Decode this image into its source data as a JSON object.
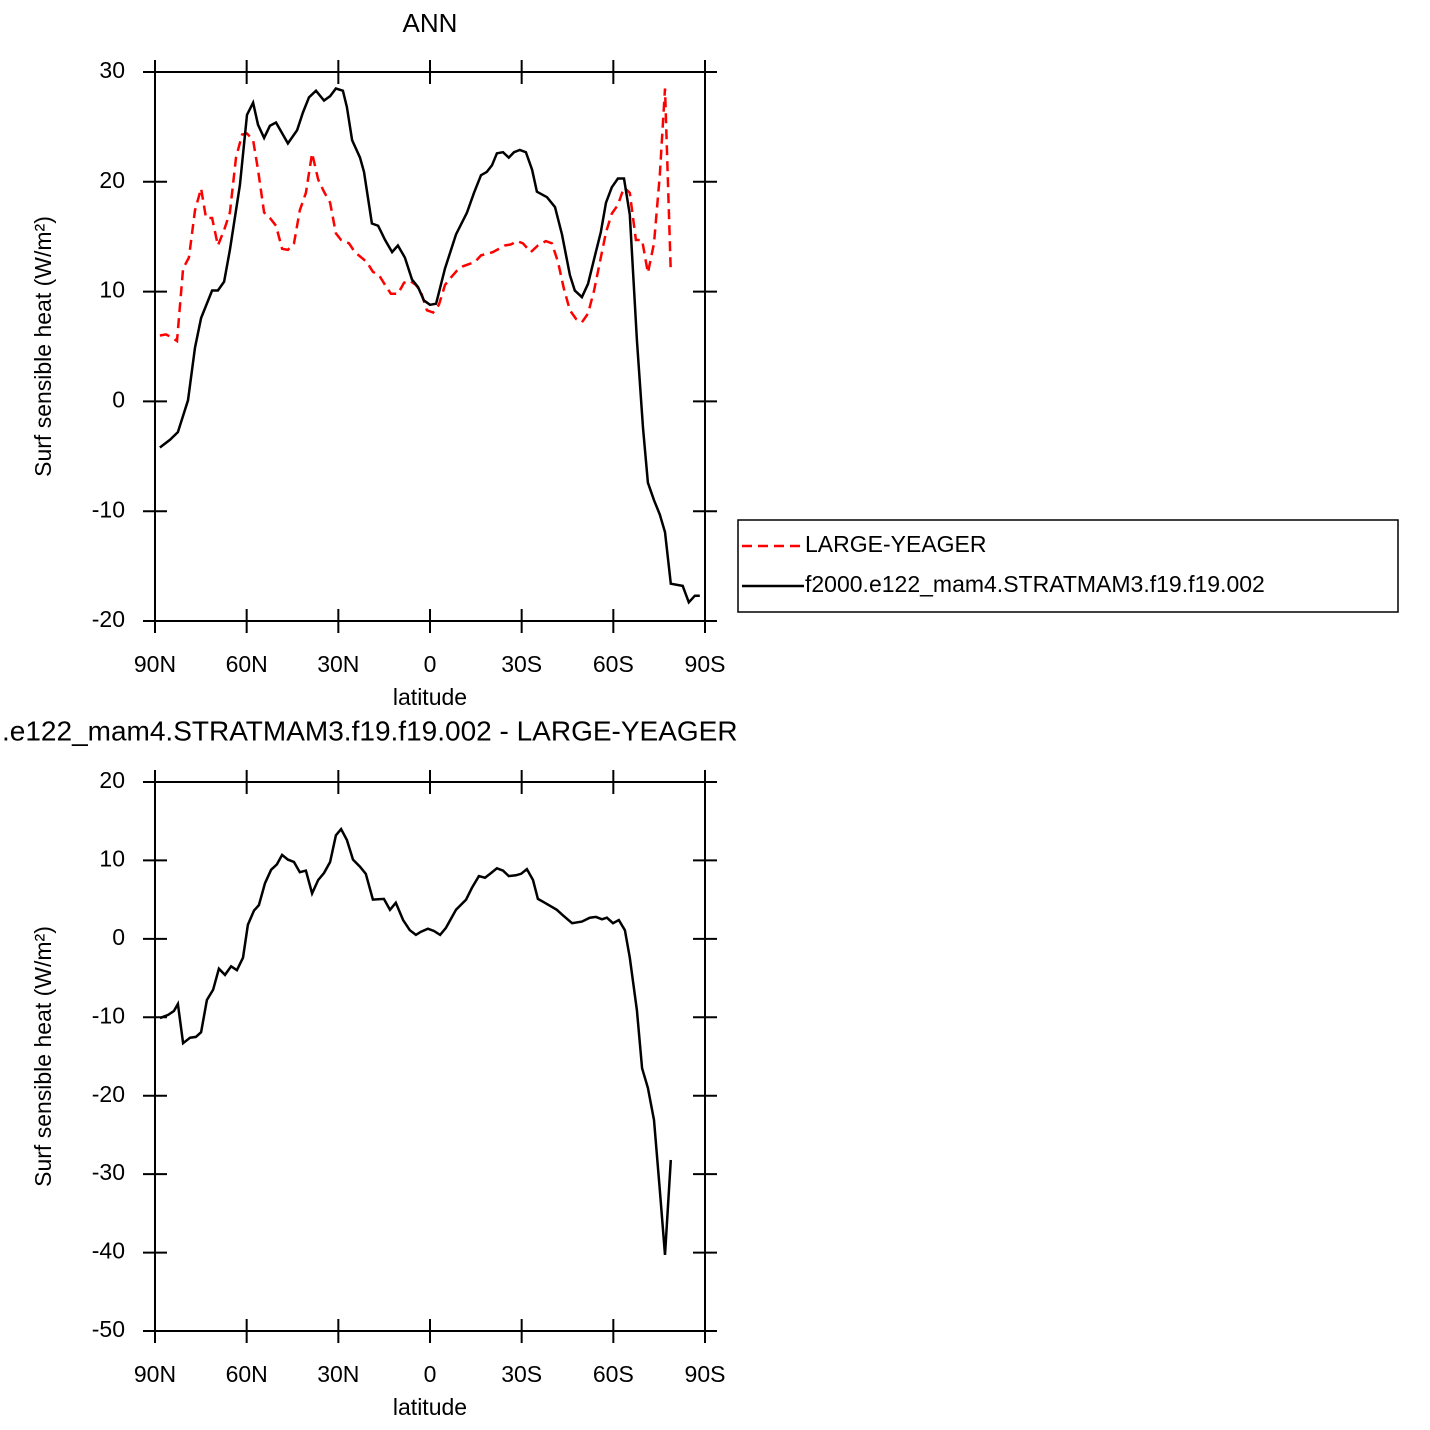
{
  "chart_data": [
    {
      "type": "line",
      "title": "ANN",
      "xlabel": "latitude",
      "ylabel": "Surf sensible heat (W/m²)",
      "xlim": [
        90,
        -90
      ],
      "xticks": [
        {
          "value": 90,
          "label": "90N"
        },
        {
          "value": 60,
          "label": "60N"
        },
        {
          "value": 30,
          "label": "30N"
        },
        0,
        {
          "value": -30,
          "label": "30S"
        },
        {
          "value": -60,
          "label": "60S"
        },
        {
          "value": -90,
          "label": "90S"
        }
      ],
      "ylim": [
        -20,
        30
      ],
      "yticks": [
        -20,
        -10,
        0,
        10,
        20,
        30
      ],
      "legend": "right",
      "series": [
        {
          "name": "LARGE-YEAGER",
          "color": "#ff0000",
          "line_style": "dashed",
          "x": [
            88.4,
            86.4,
            84.4,
            82.8,
            80.8,
            78.9,
            76.9,
            74.9,
            73.3,
            71.3,
            69.4,
            67.4,
            65.5,
            63.5,
            61.5,
            59.9,
            57.9,
            56.3,
            54.3,
            52.4,
            50.4,
            48.4,
            46.5,
            44.5,
            42.6,
            40.6,
            38.6,
            36.6,
            34.7,
            32.7,
            30.8,
            29.1,
            26.5,
            24.6,
            20.7,
            18.7,
            16.7,
            14.7,
            12.8,
            10.5,
            8.5,
            6.6,
            4.6,
            3.0,
            1.0,
            -1.0,
            -2.9,
            -4.9,
            -6.9,
            -8.8,
            -10.8,
            -12.8,
            -14.7,
            -16.7,
            -20.6,
            -24.5,
            -26.5,
            -28.5,
            -30.4,
            -33.0,
            -35.3,
            -37.9,
            -39.9,
            -41.9,
            -43.8,
            -45.8,
            -47.8,
            -49.7,
            -51.7,
            -53.7,
            -55.6,
            -57.6,
            -59.5,
            -61.5,
            -63.5,
            -65.4,
            -67.4,
            -69.4,
            -71.3,
            -73.3,
            -75.2,
            -76.9,
            -78.8
          ],
          "values": [
            6.0,
            6.1,
            5.8,
            5.5,
            12.1,
            13.1,
            17.4,
            19.4,
            16.7,
            16.7,
            14.2,
            15.6,
            17.2,
            22.2,
            24.3,
            24.4,
            23.8,
            21.1,
            17.2,
            16.7,
            16.0,
            13.9,
            13.8,
            14.4,
            17.4,
            19.0,
            22.6,
            20.2,
            19.1,
            18.1,
            15.3,
            14.7,
            14.4,
            13.6,
            12.7,
            11.8,
            11.5,
            10.6,
            9.8,
            9.8,
            10.8,
            11.0,
            10.6,
            10.0,
            8.3,
            8.1,
            8.8,
            10.6,
            11.3,
            11.9,
            12.3,
            12.5,
            12.7,
            13.3,
            13.6,
            14.2,
            14.3,
            14.6,
            14.4,
            13.6,
            14.2,
            14.6,
            14.4,
            12.7,
            10.3,
            8.3,
            7.5,
            7.2,
            8.0,
            10.1,
            12.7,
            15.4,
            17.1,
            17.9,
            19.5,
            19.0,
            14.7,
            14.7,
            11.7,
            14.4,
            20.6,
            28.5,
            11.7
          ]
        },
        {
          "name": "f2000.e122_mam4.STRATMAM3.f19.f19.002",
          "color": "#000000",
          "line_style": "solid",
          "x": [
            88.4,
            85.1,
            82.5,
            79.2,
            76.9,
            74.9,
            71.3,
            69.4,
            67.4,
            65.5,
            62.2,
            59.9,
            57.9,
            56.3,
            54.3,
            52.4,
            50.4,
            46.5,
            43.5,
            41.6,
            39.6,
            37.3,
            34.7,
            32.7,
            30.8,
            28.5,
            27.2,
            25.5,
            22.9,
            21.6,
            19.0,
            17.0,
            14.7,
            12.4,
            10.5,
            8.2,
            5.9,
            3.9,
            2.0,
            0.0,
            -2.0,
            -4.9,
            -8.5,
            -12.1,
            -14.4,
            -16.7,
            -18.6,
            -20.3,
            -21.9,
            -23.9,
            -25.8,
            -27.5,
            -29.4,
            -31.4,
            -33.4,
            -35.0,
            -38.3,
            -40.9,
            -43.2,
            -45.8,
            -47.4,
            -49.7,
            -51.7,
            -54.0,
            -55.9,
            -57.6,
            -59.5,
            -61.5,
            -63.5,
            -65.4,
            -67.7,
            -69.7,
            -71.3,
            -73.3,
            -75.2,
            -76.9,
            -78.8,
            -82.7,
            -84.7,
            -86.7,
            -88.3
          ],
          "values": [
            -4.2,
            -3.5,
            -2.8,
            0.1,
            4.9,
            7.6,
            10.1,
            10.1,
            10.9,
            13.8,
            19.7,
            26.1,
            27.2,
            25.2,
            24.0,
            25.1,
            25.4,
            23.5,
            24.7,
            26.3,
            27.7,
            28.3,
            27.4,
            27.8,
            28.5,
            28.3,
            26.8,
            23.8,
            22.2,
            20.9,
            16.2,
            16.0,
            14.7,
            13.6,
            14.2,
            13.1,
            11.1,
            10.4,
            9.2,
            8.8,
            8.9,
            12.1,
            15.2,
            17.2,
            19.0,
            20.6,
            20.9,
            21.5,
            22.6,
            22.7,
            22.2,
            22.7,
            22.9,
            22.7,
            21.1,
            19.1,
            18.6,
            17.7,
            15.2,
            11.5,
            10.1,
            9.5,
            10.7,
            13.3,
            15.4,
            18.1,
            19.5,
            20.3,
            20.3,
            17.0,
            5.6,
            -2.4,
            -7.4,
            -9.0,
            -10.3,
            -11.9,
            -16.6,
            -16.8,
            -18.3,
            -17.7,
            -17.7
          ]
        }
      ]
    },
    {
      "type": "line",
      "title": ".e122_mam4.STRATMAM3.f19.f19.002 - LARGE-YEAGER",
      "xlabel": "latitude",
      "ylabel": "Surf sensible heat (W/m²)",
      "xlim": [
        90,
        -90
      ],
      "xticks": [
        {
          "value": 90,
          "label": "90N"
        },
        {
          "value": 60,
          "label": "60N"
        },
        {
          "value": 30,
          "label": "30N"
        },
        0,
        {
          "value": -30,
          "label": "30S"
        },
        {
          "value": -60,
          "label": "60S"
        },
        {
          "value": -90,
          "label": "90S"
        }
      ],
      "ylim": [
        -50,
        20
      ],
      "yticks": [
        -50,
        -40,
        -30,
        -20,
        -10,
        0,
        10,
        20
      ],
      "series": [
        {
          "color": "#000000",
          "line_style": "solid",
          "x": [
            88.4,
            85.7,
            83.8,
            82.5,
            80.8,
            78.5,
            76.6,
            74.9,
            73.0,
            71.0,
            69.1,
            67.1,
            65.1,
            63.2,
            61.2,
            59.6,
            57.6,
            56.0,
            54.0,
            52.0,
            50.1,
            48.4,
            46.5,
            44.5,
            42.6,
            40.6,
            38.6,
            36.6,
            34.7,
            32.7,
            30.8,
            29.1,
            27.2,
            25.2,
            22.9,
            21.0,
            18.7,
            15.1,
            13.1,
            11.2,
            8.8,
            6.6,
            4.6,
            3.0,
            0.7,
            -1.3,
            -3.3,
            -5.2,
            -8.5,
            -11.8,
            -13.7,
            -16.0,
            -18.0,
            -20.0,
            -21.9,
            -23.9,
            -25.8,
            -28.1,
            -29.8,
            -31.7,
            -33.7,
            -35.3,
            -37.6,
            -41.5,
            -43.5,
            -46.5,
            -49.7,
            -52.3,
            -54.3,
            -56.3,
            -57.9,
            -59.9,
            -61.8,
            -63.8,
            -65.4,
            -67.7,
            -69.4,
            -71.3,
            -73.3,
            -75.2,
            -76.9,
            -78.8
          ],
          "values": [
            -10.1,
            -9.7,
            -9.2,
            -8.3,
            -13.3,
            -12.6,
            -12.5,
            -11.9,
            -7.8,
            -6.5,
            -3.8,
            -4.6,
            -3.5,
            -4.0,
            -2.4,
            1.8,
            3.6,
            4.3,
            7.1,
            8.8,
            9.5,
            10.7,
            10.1,
            9.8,
            8.5,
            8.7,
            5.8,
            7.5,
            8.4,
            9.8,
            13.2,
            14.0,
            12.6,
            10.1,
            9.2,
            8.3,
            5.0,
            5.1,
            3.7,
            4.6,
            2.4,
            1.1,
            0.5,
            0.9,
            1.3,
            1.0,
            0.5,
            1.4,
            3.7,
            5.0,
            6.5,
            8.0,
            7.8,
            8.4,
            9.0,
            8.7,
            8.0,
            8.1,
            8.3,
            8.9,
            7.5,
            5.1,
            4.6,
            3.7,
            3.0,
            2.0,
            2.2,
            2.7,
            2.8,
            2.5,
            2.7,
            2.0,
            2.4,
            1.1,
            -2.4,
            -9.1,
            -16.5,
            -19.0,
            -23.1,
            -32.0,
            -40.3,
            -28.2
          ]
        }
      ]
    }
  ]
}
